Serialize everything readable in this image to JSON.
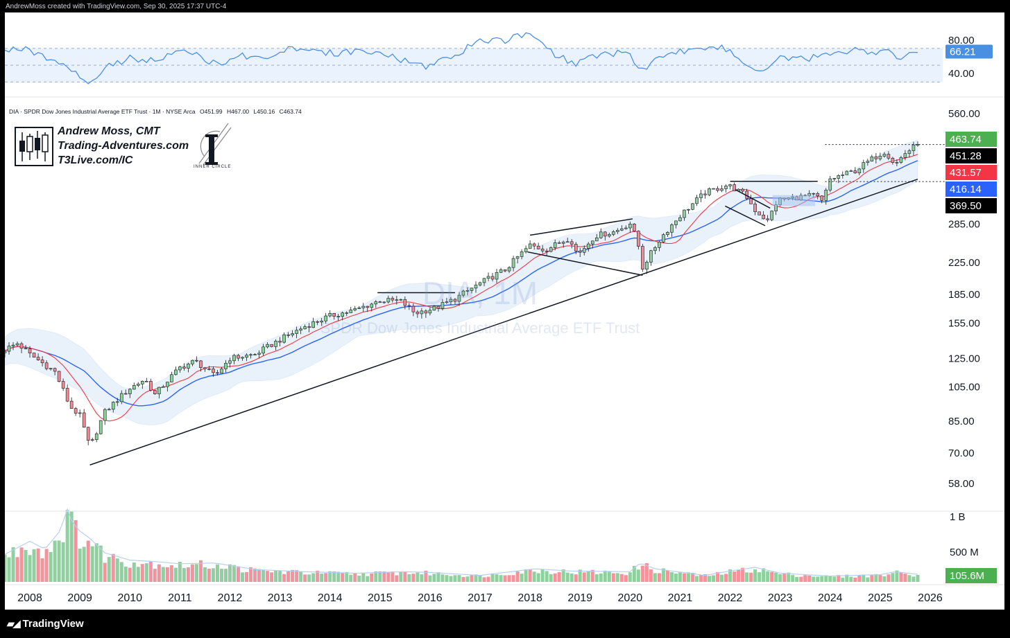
{
  "header": {
    "credit": "AndrewMoss created with TradingView.com, Sep 30, 2025 17:37 UTC-4"
  },
  "symbol_line": {
    "name": "DIA · SPDR Dow Jones Industrial Average ETF Trust · 1M · NYSE Arca",
    "open": "O451.99",
    "high": "H467.00",
    "low": "L450.16",
    "close": "C463.74"
  },
  "brand": {
    "line1": "Andrew Moss, CMT",
    "line2": "Trading-Adventures.com",
    "line3": "T3Live.com/IC",
    "inner_circle": "INNER CIRCLE"
  },
  "watermark": {
    "ticker": "DIA, 1M",
    "name": "SPDR Dow Jones Industrial Average ETF Trust"
  },
  "footer": {
    "logo_text": "TradingView"
  },
  "colors": {
    "up": "#8fcf9a",
    "down": "#f08a93",
    "ma_fast": "#f23645",
    "ma_slow": "#2962ff",
    "band": "#cfe2f8",
    "rsi": "#4a90e2",
    "volume_up": "#8fd19e",
    "volume_down": "#f5929b"
  },
  "chart_data": [
    {
      "type": "line",
      "title": "RSI",
      "y_ticks": [
        "80.00",
        "40.00"
      ],
      "y_range": [
        22,
        98
      ],
      "levels": [
        70,
        50,
        30
      ],
      "last_value": "66.21",
      "x": [
        2007.5,
        2008.0,
        2008.5,
        2008.9,
        2009.2,
        2009.6,
        2010.0,
        2010.5,
        2011.0,
        2011.4,
        2011.75,
        2012.2,
        2012.7,
        2013.2,
        2013.7,
        2014.2,
        2014.7,
        2015.2,
        2015.7,
        2016.0,
        2016.6,
        2017.0,
        2017.5,
        2018.0,
        2018.5,
        2018.9,
        2019.3,
        2019.7,
        2020.0,
        2020.2,
        2020.6,
        2021.0,
        2021.5,
        2021.9,
        2022.2,
        2022.5,
        2022.75,
        2023.0,
        2023.5,
        2023.8,
        2024.2,
        2024.6,
        2024.9,
        2025.1,
        2025.3,
        2025.5,
        2025.75
      ],
      "values": [
        70,
        68,
        55,
        42,
        28,
        50,
        58,
        55,
        68,
        60,
        50,
        62,
        58,
        70,
        66,
        64,
        68,
        62,
        50,
        48,
        66,
        80,
        80,
        88,
        62,
        52,
        62,
        64,
        66,
        42,
        60,
        66,
        72,
        70,
        58,
        46,
        48,
        58,
        58,
        60,
        66,
        68,
        64,
        68,
        58,
        62,
        66.21
      ]
    },
    {
      "type": "candlestick",
      "title": "DIA · SPDR Dow Jones Industrial Average ETF Trust · 1M · NYSE Arca",
      "scale": "log",
      "y_range": [
        50,
        600
      ],
      "y_ticks": [
        "560.00",
        "285.00",
        "225.00",
        "185.00",
        "155.00",
        "125.00",
        "105.00",
        "85.00",
        "70.00",
        "58.00"
      ],
      "x_ticks": [
        "2008",
        "2009",
        "2010",
        "2011",
        "2012",
        "2013",
        "2014",
        "2015",
        "2016",
        "2017",
        "2018",
        "2019",
        "2020",
        "2021",
        "2022",
        "2023",
        "2024",
        "2025",
        "2026"
      ],
      "x_range": [
        2007.5,
        2026.25
      ],
      "price_path": {
        "x": [
          2007.5,
          2007.75,
          2008.0,
          2008.5,
          2008.8,
          2009.0,
          2009.2,
          2009.5,
          2010.0,
          2010.3,
          2010.5,
          2011.0,
          2011.3,
          2011.7,
          2012.0,
          2012.5,
          2013.0,
          2013.5,
          2014.0,
          2014.5,
          2015.0,
          2015.4,
          2015.7,
          2016.1,
          2016.5,
          2017.0,
          2017.5,
          2018.0,
          2018.3,
          2018.8,
          2018.95,
          2019.3,
          2019.7,
          2020.0,
          2020.15,
          2020.25,
          2020.6,
          2021.0,
          2021.5,
          2021.95,
          2022.3,
          2022.5,
          2022.75,
          2022.95,
          2023.3,
          2023.7,
          2023.85,
          2024.0,
          2024.5,
          2024.9,
          2025.1,
          2025.3,
          2025.5,
          2025.75
        ],
        "close": [
          132,
          137,
          128,
          115,
          93,
          88,
          72,
          90,
          104,
          110,
          100,
          118,
          123,
          112,
          125,
          128,
          140,
          152,
          162,
          168,
          178,
          178,
          165,
          170,
          180,
          198,
          215,
          250,
          243,
          262,
          235,
          265,
          272,
          286,
          255,
          218,
          260,
          300,
          345,
          362,
          340,
          310,
          290,
          330,
          335,
          340,
          325,
          375,
          395,
          430,
          445,
          410,
          440,
          463.74
        ]
      },
      "moving_averages": [
        {
          "name": "MA fast",
          "last_value": "431.57"
        },
        {
          "name": "MA slow",
          "last_value": "416.14"
        }
      ],
      "price_labels": [
        {
          "value": "463.74",
          "price": 463.74,
          "color": "#4caf50"
        },
        {
          "value": "451.28",
          "price": 451.28,
          "color": "#000000"
        },
        {
          "value": "431.57",
          "price": 431.57,
          "color": "#f23645"
        },
        {
          "value": "416.14",
          "price": 416.14,
          "color": "#2962ff"
        },
        {
          "value": "369.50",
          "price": 369.5,
          "color": "#000000"
        }
      ],
      "trendlines": [
        {
          "name": "long-term support trendline",
          "from": [
            2009.2,
            65
          ],
          "to": [
            2025.75,
            375
          ]
        },
        {
          "name": "2015 resistance line",
          "from": [
            2014.95,
            187
          ],
          "to": [
            2016.5,
            187
          ]
        },
        {
          "name": "2018 megaphone upper",
          "from": [
            2018.0,
            266
          ],
          "to": [
            2020.05,
            294
          ]
        },
        {
          "name": "2018 megaphone lower",
          "from": [
            2017.95,
            240
          ],
          "to": [
            2020.25,
            208
          ]
        },
        {
          "name": "2022 flag upper",
          "from": [
            2022.1,
            352
          ],
          "to": [
            2022.8,
            314
          ]
        },
        {
          "name": "2022 flag lower",
          "from": [
            2021.9,
            318
          ],
          "to": [
            2022.7,
            282
          ]
        },
        {
          "name": "2022-2023 resistance",
          "from": [
            2022.0,
            370
          ],
          "to": [
            2023.75,
            370
          ]
        }
      ]
    },
    {
      "type": "bar",
      "title": "Volume",
      "y_ticks": [
        "1 B",
        "500 M"
      ],
      "y_range": [
        0,
        1050000000
      ],
      "last_value": "105.6M",
      "x": [
        2007.5,
        2008.0,
        2008.3,
        2008.6,
        2008.75,
        2008.85,
        2009.0,
        2009.2,
        2009.5,
        2010.0,
        2010.5,
        2011.0,
        2011.7,
        2012.5,
        2013.5,
        2014.5,
        2015.5,
        2016.0,
        2017.0,
        2018.1,
        2018.8,
        2020.0,
        2020.2,
        2020.5,
        2021.5,
        2022.0,
        2022.5,
        2023.0,
        2024.0,
        2025.0,
        2025.3,
        2025.75
      ],
      "values": [
        380000000,
        560000000,
        450000000,
        700000000,
        1000000000,
        820000000,
        700000000,
        600000000,
        400000000,
        300000000,
        280000000,
        250000000,
        260000000,
        170000000,
        140000000,
        120000000,
        140000000,
        130000000,
        90000000,
        180000000,
        150000000,
        140000000,
        260000000,
        180000000,
        90000000,
        150000000,
        200000000,
        120000000,
        80000000,
        100000000,
        140000000,
        105600000
      ]
    }
  ]
}
